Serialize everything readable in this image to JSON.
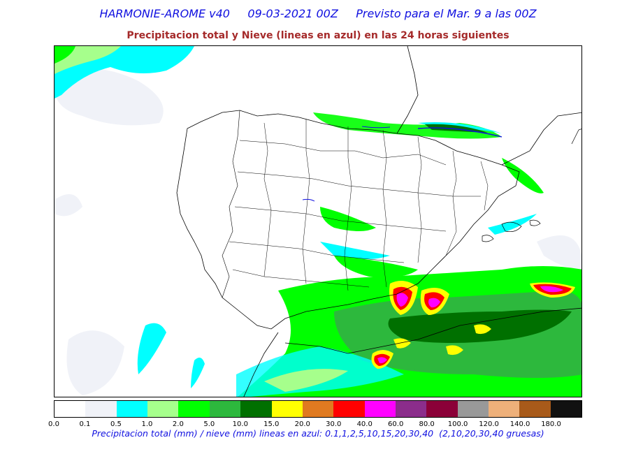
{
  "header": {
    "title": "HARMONIE-AROME v40     09-03-2021 00Z     Previsto para el Mar. 9 a las 00Z",
    "subtitle": "Precipitacion total y Nieve (lineas en azul) en las 24 horas siguientes"
  },
  "legend": {
    "colors": [
      "#ffffff",
      "#f0f2f8",
      "#00ffff",
      "#a6ff8c",
      "#00ff00",
      "#2db83d",
      "#007000",
      "#ffff00",
      "#e07a20",
      "#ff0000",
      "#ff00ff",
      "#8b2d8b",
      "#8b0038",
      "#999999",
      "#eeb07a",
      "#a85a1a",
      "#111111"
    ],
    "ticks": [
      "0.0",
      "0.1",
      "0.5",
      "1.0",
      "2.0",
      "5.0",
      "10.0",
      "15.0",
      "20.0",
      "30.0",
      "40.0",
      "60.0",
      "80.0",
      "100.0",
      "120.0",
      "140.0",
      "180.0"
    ],
    "caption": "Precipitacion total (mm) / nieve (mm) lineas en azul: 0.1,1,2,5,10,15,20,30,40  (2,10,20,30,40 gruesas)"
  }
}
